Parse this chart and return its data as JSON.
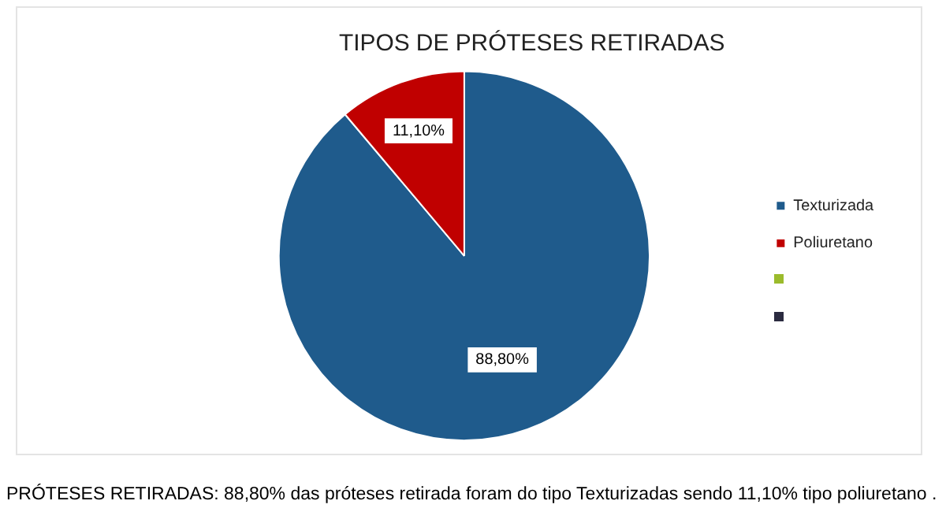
{
  "chart_data": {
    "type": "pie",
    "title": "TIPOS DE PRÓTESES RETIRADAS",
    "categories": [
      "Texturizada",
      "Poliuretano"
    ],
    "values": [
      88.8,
      11.1
    ],
    "colors": [
      "#1f5b8c",
      "#c00000"
    ],
    "value_labels": [
      "88,80%",
      "11,10%"
    ],
    "legend": "right",
    "annotations": [
      "PRÓTESES RETIRADAS:  88,80% das próteses retirada foram do tipo Texturizadas sendo 11,10% tipo poliuretano ."
    ]
  }
}
